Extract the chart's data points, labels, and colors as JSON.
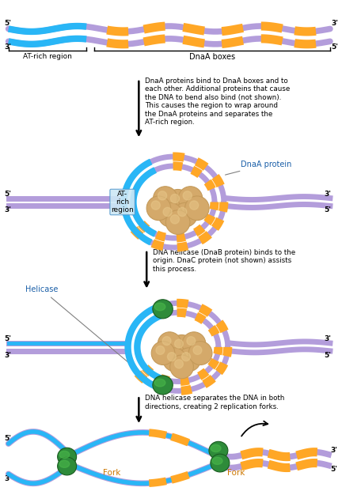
{
  "bg_color": "#ffffff",
  "dna_purple": "#b39ddb",
  "dna_blue": "#29b6f6",
  "dna_orange": "#ffa726",
  "dna_green": "#2e8b3a",
  "protein_tan": "#d4a96a",
  "protein_tan2": "#c49a5a",
  "label_blue": "#1a5fa8",
  "label_orange": "#cc7700",
  "text1": "DnaA proteins bind to DnaA boxes and to\neach other. Additional proteins that cause\nthe DNA to bend also bind (not shown).\nThis causes the region to wrap around\nthe DnaA proteins and separates the\nAT-rich region.",
  "text2": "DNA helicase (DnaB protein) binds to the\norigin. DnaC protein (not shown) assists\nthis process.",
  "text3": "DNA helicase separates the DNA in both\ndirections, creating 2 replication forks."
}
